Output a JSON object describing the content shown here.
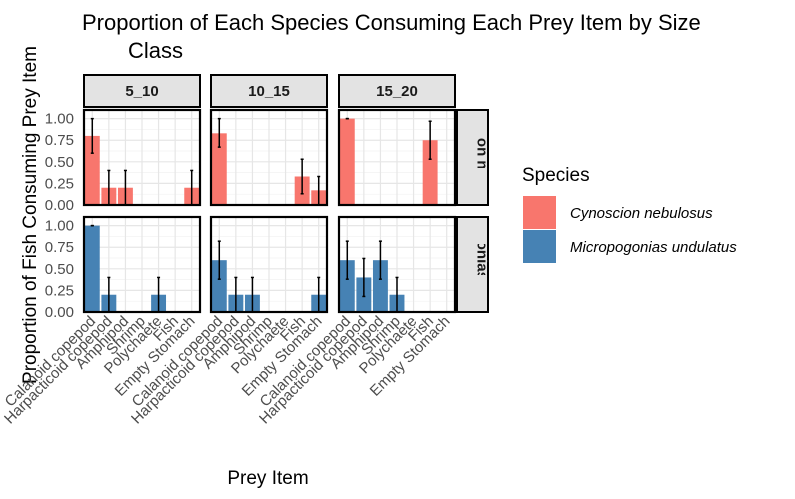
{
  "chart_data": {
    "type": "bar",
    "title": "Proportion of Each Species Consuming Each Prey Item by Size Class",
    "title_lines": [
      "Proportion of Each Species Consuming Each Prey Item by Size",
      "Class"
    ],
    "xlabel": "Prey Item",
    "ylabel": "Proportion of Fish Consuming Prey Item",
    "ylim": [
      0,
      1.1
    ],
    "yticks": [
      0,
      0.25,
      0.5,
      0.75,
      1.0
    ],
    "ytick_labels": [
      "0.00",
      "0.25",
      "0.50",
      "0.75",
      "1.00"
    ],
    "grid": true,
    "legend": {
      "title": "Species",
      "position": "right"
    },
    "categories": [
      "Calanoid copepod",
      "Harpacticoid copepod",
      "Amphipod",
      "Shrimp",
      "Polychaete",
      "Fish",
      "Empty Stomach"
    ],
    "facet_columns": [
      "5_10",
      "10_15",
      "15_20"
    ],
    "facet_rows": [
      {
        "label": "Cynoscion nebulosus",
        "strip_text": "Cynoscion nebulosus",
        "color": "#f8766d"
      },
      {
        "label": "Micropogonias undulatus",
        "strip_text": "Micropogonias undulatus",
        "color": "#4682b4"
      }
    ],
    "series": [
      {
        "name": "Cynoscion nebulosus",
        "color": "#f8766d",
        "panels": {
          "5_10": {
            "values": [
              0.8,
              0.2,
              0.2,
              0,
              0,
              0,
              0.2
            ],
            "lower": [
              0.6,
              0.0,
              0.0,
              0,
              0,
              0,
              0.0
            ],
            "upper": [
              1.0,
              0.4,
              0.4,
              0,
              0,
              0,
              0.4
            ]
          },
          "10_15": {
            "values": [
              0.83,
              0,
              0,
              0,
              0,
              0.33,
              0.17
            ],
            "lower": [
              0.67,
              0,
              0,
              0,
              0,
              0.13,
              0.0
            ],
            "upper": [
              1.0,
              0,
              0,
              0,
              0,
              0.53,
              0.33
            ]
          },
          "15_20": {
            "values": [
              1.0,
              0,
              0,
              0,
              0,
              0.75,
              0
            ],
            "lower": [
              1.0,
              0,
              0,
              0,
              0,
              0.53,
              0
            ],
            "upper": [
              1.0,
              0,
              0,
              0,
              0,
              0.97,
              0
            ]
          }
        }
      },
      {
        "name": "Micropogonias undulatus",
        "color": "#4682b4",
        "panels": {
          "5_10": {
            "values": [
              1.0,
              0.2,
              0,
              0,
              0.2,
              0,
              0
            ],
            "lower": [
              1.0,
              0.0,
              0,
              0,
              0.0,
              0,
              0
            ],
            "upper": [
              1.0,
              0.4,
              0,
              0,
              0.4,
              0,
              0
            ]
          },
          "10_15": {
            "values": [
              0.6,
              0.2,
              0.2,
              0,
              0,
              0,
              0.2
            ],
            "lower": [
              0.38,
              0.0,
              0.0,
              0,
              0,
              0,
              0.0
            ],
            "upper": [
              0.82,
              0.4,
              0.4,
              0,
              0,
              0,
              0.4
            ]
          },
          "15_20": {
            "values": [
              0.6,
              0.4,
              0.6,
              0.2,
              0,
              0,
              0
            ],
            "lower": [
              0.38,
              0.18,
              0.38,
              0.0,
              0,
              0,
              0
            ],
            "upper": [
              0.82,
              0.62,
              0.82,
              0.4,
              0,
              0,
              0
            ]
          }
        }
      }
    ]
  }
}
